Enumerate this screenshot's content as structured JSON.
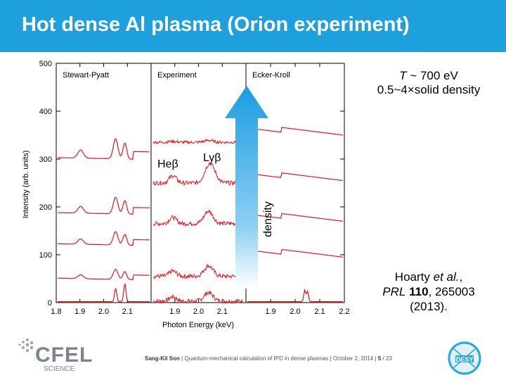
{
  "slide": {
    "title": "Hot dense Al plasma (Orion experiment)",
    "note_temp_symbol": "T",
    "note_temp_value": "~ 700 eV",
    "note_density": "0.5~4×solid density",
    "ref_authors": "Hoarty",
    "ref_etal": "et al.",
    "ref_journal": "PRL",
    "ref_volume": "110",
    "ref_page": ", 265003",
    "ref_year": "(2013).",
    "footer_author": "Sang-Kil Son",
    "footer_sep": "|",
    "footer_talk": "Quantum-mechanical calculation of IPD in dense plasmas",
    "footer_date": "October 2, 2014",
    "footer_page": "5",
    "footer_total": "/ 23",
    "logo_left_main": "CFEL",
    "logo_left_sub": "SCIENCE",
    "logo_right": "DESY"
  },
  "chart_data": {
    "type": "line",
    "ylabel": "Intensity (arb. units)",
    "xlabel": "Photon Energy (keV)",
    "ylim": [
      0,
      500
    ],
    "yticks": [
      0,
      100,
      200,
      300,
      400,
      500
    ],
    "panels": [
      {
        "name": "Stewart-Pyatt",
        "xlim": [
          1.8,
          2.2
        ],
        "xticks": [
          "1.8",
          "1.9",
          "2.0",
          "2.1"
        ]
      },
      {
        "name": "Experiment",
        "xlim": [
          1.8,
          2.2
        ],
        "xticks": [
          "1.9",
          "2.0",
          "2.1"
        ]
      },
      {
        "name": "Ecker-Kroll",
        "xlim": [
          1.8,
          2.2
        ],
        "xticks": [
          "1.9",
          "2.0",
          "2.1",
          "2.2"
        ]
      }
    ],
    "annotations": {
      "he_beta": "Heβ",
      "ly_beta": "Lyβ",
      "arrow_label": "density"
    },
    "series_color": "#e8141c",
    "offsets": [
      15,
      70,
      130,
      200,
      330
    ]
  }
}
